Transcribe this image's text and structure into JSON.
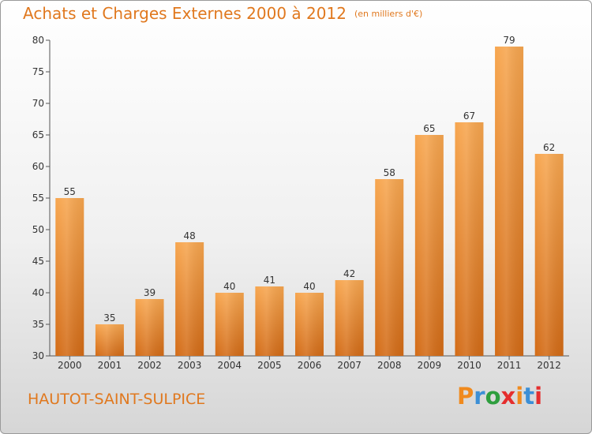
{
  "header": {
    "title": "Achats et Charges Externes 2000 à 2012",
    "unit": "(en milliers d'€)"
  },
  "footer": {
    "commune": "HAUTOT-SAINT-SULPICE",
    "logo_text": "Proxiti",
    "logo_colors": [
      "#f08a1e",
      "#3c8fd6",
      "#2e9e3e",
      "#e52e2e",
      "#f08a1e",
      "#3c8fd6",
      "#e52e2e"
    ]
  },
  "colors": {
    "accent": "#e0781e",
    "bar_light": "#f7a04e",
    "bar_dark": "#d06a18"
  },
  "chart_data": {
    "type": "bar",
    "title": "Achats et Charges Externes 2000 à 2012",
    "categories": [
      "2000",
      "2001",
      "2002",
      "2003",
      "2004",
      "2005",
      "2006",
      "2007",
      "2008",
      "2009",
      "2010",
      "2011",
      "2012"
    ],
    "values": [
      55,
      35,
      39,
      48,
      40,
      41,
      40,
      42,
      58,
      65,
      67,
      79,
      62
    ],
    "ylim": [
      30,
      80
    ],
    "yticks": [
      30,
      35,
      40,
      45,
      50,
      55,
      60,
      65,
      70,
      75,
      80
    ],
    "grid": false,
    "legend": "none"
  }
}
